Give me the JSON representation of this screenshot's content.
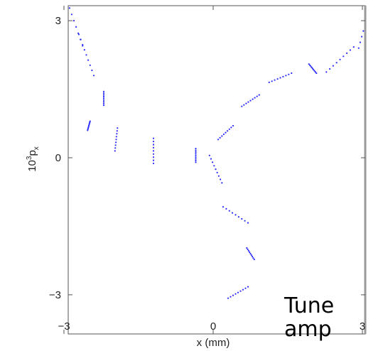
{
  "chart_data": {
    "type": "scatter",
    "title": "",
    "xlabel": "x (mm)",
    "ylabel_base": "10",
    "ylabel_sup": "3",
    "ylabel_main": "p",
    "ylabel_sub": "x",
    "xlim": [
      -3.3,
      3.3
    ],
    "ylim": [
      -3.3,
      3.3
    ],
    "x_ticks": [
      -3,
      0,
      3
    ],
    "x_tick_labels": [
      "−3",
      "0",
      "3"
    ],
    "y_ticks": [
      -3,
      0,
      3
    ],
    "y_tick_labels": [
      "−3",
      "0",
      "3"
    ],
    "grid": false,
    "point_color": "#2b2bff",
    "arms": [
      {
        "arm": "upper-left",
        "rows": [
          {
            "x": -2.2,
            "y": 1.3,
            "dx": 0.0,
            "dy": -0.3
          },
          {
            "x": -2.55,
            "y": 2.25,
            "dx": 0.3,
            "dy": -0.9
          },
          {
            "x": -2.8,
            "y": 3.0,
            "dx": 0.35,
            "dy": -1.1
          },
          {
            "x": -3.1,
            "y": 3.1,
            "dx": 0.05,
            "dy": -2.2
          }
        ]
      },
      {
        "arm": "left-trough",
        "rows": [
          {
            "x": -3.05,
            "y": 1.15,
            "dx": 0.0,
            "dy": 0.55
          },
          {
            "x": -2.5,
            "y": 0.7,
            "dx": 0.05,
            "dy": 0.2
          },
          {
            "x": -1.95,
            "y": 0.4,
            "dx": 0.05,
            "dy": 0.5
          },
          {
            "x": -1.2,
            "y": 0.15,
            "dx": 0.0,
            "dy": -0.55
          },
          {
            "x": -0.35,
            "y": 0.05,
            "dx": 0.0,
            "dy": -0.3
          }
        ]
      },
      {
        "arm": "upper-right",
        "rows": [
          {
            "x": 0.25,
            "y": 0.55,
            "dx": 0.3,
            "dy": 0.3
          },
          {
            "x": 0.75,
            "y": 1.25,
            "dx": 0.35,
            "dy": 0.25
          },
          {
            "x": 1.35,
            "y": 1.75,
            "dx": 0.45,
            "dy": 0.2
          },
          {
            "x": 2.0,
            "y": 1.95,
            "dx": 0.15,
            "dy": -0.2
          },
          {
            "x": 2.55,
            "y": 2.15,
            "dx": 0.55,
            "dy": 0.55
          },
          {
            "x": 3.05,
            "y": 2.9,
            "dx": 0.25,
            "dy": 1.0
          }
        ]
      },
      {
        "arm": "lower",
        "rows": [
          {
            "x": 0.05,
            "y": -0.25,
            "dx": 0.25,
            "dy": -0.6
          },
          {
            "x": 0.45,
            "y": -1.25,
            "dx": 0.5,
            "dy": -0.35
          },
          {
            "x": 0.75,
            "y": -2.1,
            "dx": 0.15,
            "dy": -0.25
          },
          {
            "x": 0.5,
            "y": -2.95,
            "dx": -0.4,
            "dy": -0.25
          }
        ]
      }
    ]
  },
  "annotation": {
    "line1": "Tune",
    "line2": "amp"
  }
}
